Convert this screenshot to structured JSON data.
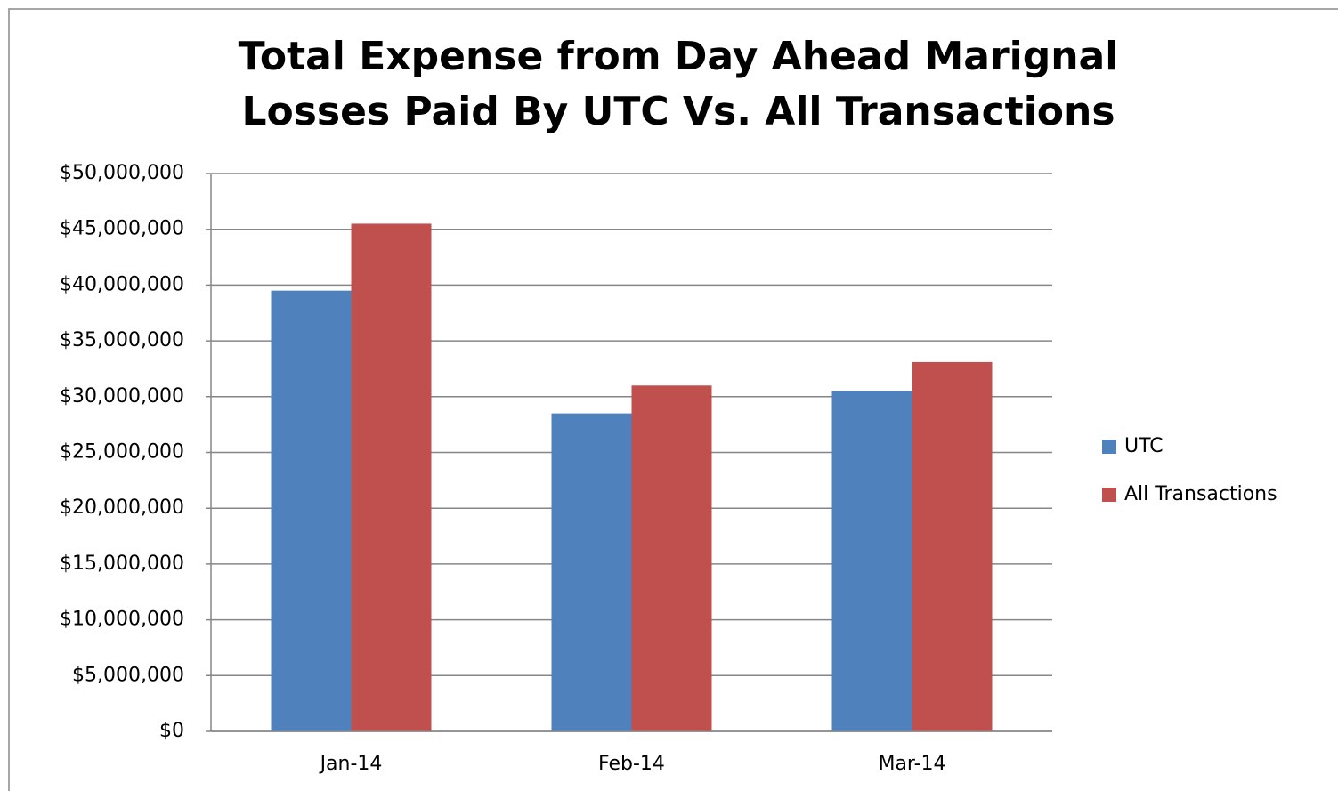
{
  "chart_data": {
    "type": "bar",
    "title": [
      "Total Expense from Day Ahead Marignal",
      "Losses Paid By UTC Vs. All Transactions"
    ],
    "categories": [
      "Jan-14",
      "Feb-14",
      "Mar-14"
    ],
    "series": [
      {
        "name": "UTC",
        "color": "#4f81bd",
        "values": [
          39500000,
          28500000,
          30500000
        ]
      },
      {
        "name": "All Transactions",
        "color": "#c0504d",
        "values": [
          45500000,
          31000000,
          33100000
        ]
      }
    ],
    "ylim": [
      0,
      50000000
    ],
    "yticks": [
      {
        "value": 0,
        "label": "$0"
      },
      {
        "value": 5000000,
        "label": "$5,000,000"
      },
      {
        "value": 10000000,
        "label": "$10,000,000"
      },
      {
        "value": 15000000,
        "label": "$15,000,000"
      },
      {
        "value": 20000000,
        "label": "$20,000,000"
      },
      {
        "value": 25000000,
        "label": "$25,000,000"
      },
      {
        "value": 30000000,
        "label": "$30,000,000"
      },
      {
        "value": 35000000,
        "label": "$35,000,000"
      },
      {
        "value": 40000000,
        "label": "$40,000,000"
      },
      {
        "value": 45000000,
        "label": "$45,000,000"
      },
      {
        "value": 50000000,
        "label": "$50,000,000"
      }
    ],
    "grid": true,
    "legend": "right"
  }
}
